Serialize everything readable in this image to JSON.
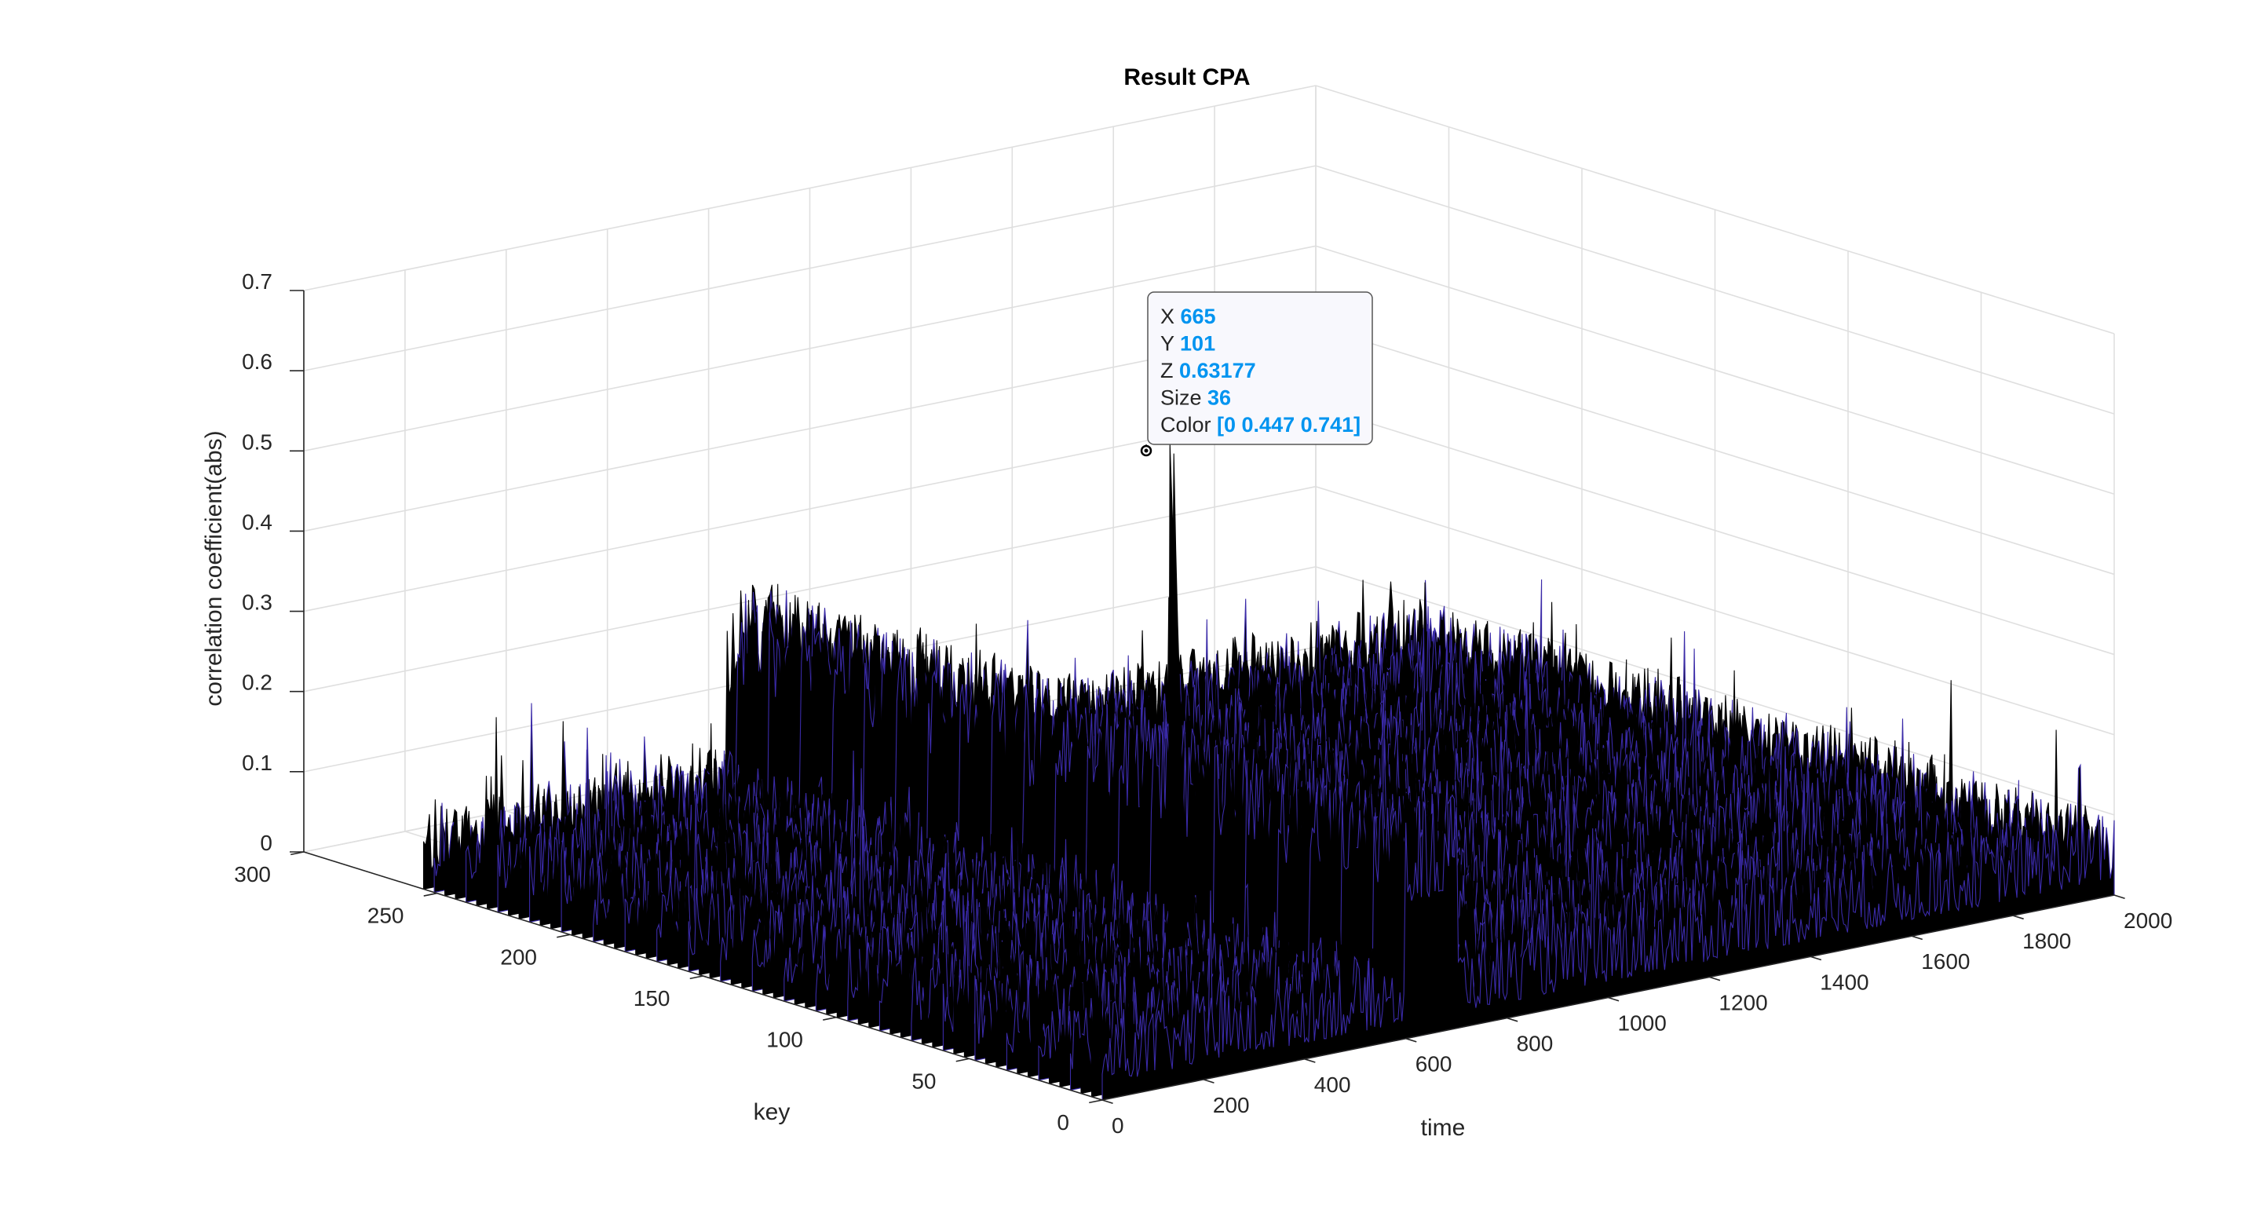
{
  "chart_data": {
    "type": "surface",
    "title": "Result CPA",
    "xlabel": "time",
    "ylabel": "key",
    "zlabel": "correlation coefficient(abs)",
    "xlim": [
      0,
      2000
    ],
    "ylim": [
      0,
      300
    ],
    "zlim": [
      0,
      0.7
    ],
    "x_data_range": [
      0,
      2000
    ],
    "y_data_range": [
      0,
      255
    ],
    "x_ticks": [
      "0",
      "200",
      "400",
      "600",
      "800",
      "1000",
      "1200",
      "1400",
      "1600",
      "1800",
      "2000"
    ],
    "y_ticks": [
      "0",
      "50",
      "100",
      "150",
      "200",
      "250",
      "300"
    ],
    "z_ticks": [
      "0",
      "0.1",
      "0.2",
      "0.3",
      "0.4",
      "0.5",
      "0.6",
      "0.7"
    ],
    "grid": true,
    "surface_color": "#000000",
    "edge_color": "#3a2aa8",
    "noise_floor_z": [
      0.02,
      0.11
    ],
    "peak": {
      "x": 665,
      "y": 101,
      "z": 0.63177
    },
    "elevated_region": {
      "x_range": [
        600,
        700
      ],
      "z_level": 0.27
    },
    "datatip": {
      "rows": [
        {
          "label": "X",
          "value": "665"
        },
        {
          "label": "Y",
          "value": "101"
        },
        {
          "label": "Z",
          "value": "0.63177"
        },
        {
          "label": "Size",
          "value": "36"
        },
        {
          "label": "Color",
          "value": "[0 0.447 0.741]"
        }
      ],
      "value_color": "#0094f0"
    }
  }
}
